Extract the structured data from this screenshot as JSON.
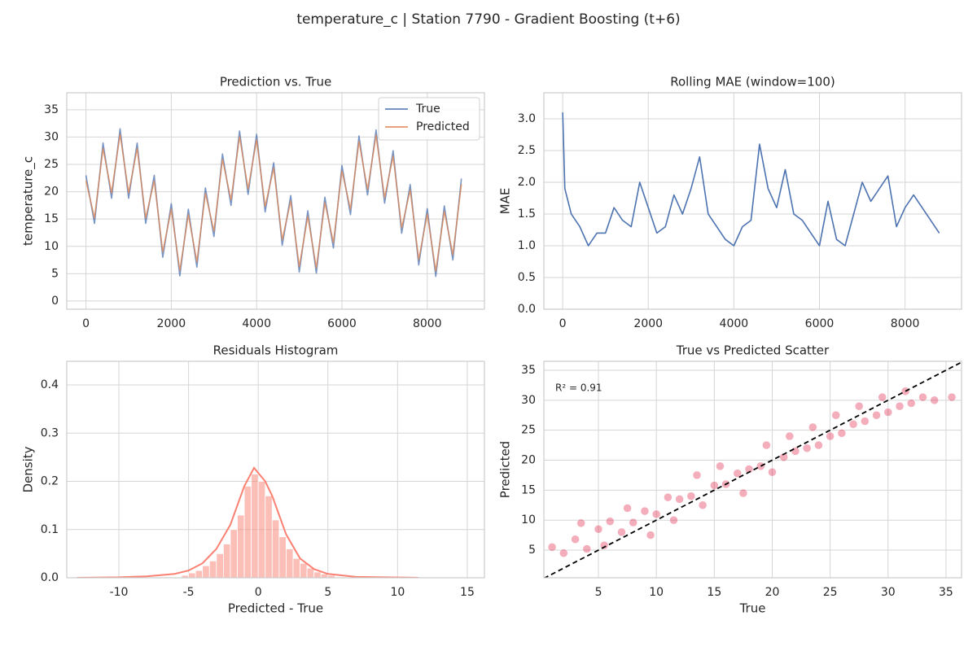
{
  "title": "temperature_c | Station 7790 - Gradient Boosting (t+6)",
  "chart_data": [
    {
      "type": "line",
      "title": "Prediction vs. True",
      "ylabel": "temperature_c",
      "xlim": [
        -450,
        9340
      ],
      "ylim": [
        -1.5,
        38.1
      ],
      "xticks": [
        0,
        2000,
        4000,
        6000,
        8000
      ],
      "yticks": [
        0,
        5,
        10,
        15,
        20,
        25,
        30,
        35
      ],
      "grid": true,
      "legend": "upper right",
      "x": [
        0,
        200,
        400,
        600,
        800,
        1000,
        1200,
        1400,
        1600,
        1800,
        2000,
        2200,
        2400,
        2600,
        2800,
        3000,
        3200,
        3400,
        3600,
        3800,
        4000,
        4200,
        4400,
        4600,
        4800,
        5000,
        5200,
        5400,
        5600,
        5800,
        6000,
        6200,
        6400,
        6600,
        6800,
        7000,
        7200,
        7400,
        7600,
        7800,
        8000,
        8200,
        8400,
        8600,
        8800
      ],
      "series": [
        {
          "name": "True",
          "color": "#4c72b0",
          "values": [
            23.0,
            14.2,
            28.9,
            18.8,
            31.5,
            18.8,
            28.9,
            14.2,
            23.0,
            8.0,
            17.8,
            4.6,
            16.8,
            6.2,
            20.7,
            11.8,
            26.9,
            17.5,
            31.1,
            19.5,
            30.5,
            16.3,
            25.3,
            10.2,
            19.3,
            5.3,
            16.5,
            5.1,
            19.0,
            9.7,
            24.8,
            15.8,
            30.2,
            19.4,
            31.3,
            17.9,
            27.5,
            12.4,
            21.3,
            6.6,
            16.9,
            4.5,
            17.4,
            7.5,
            22.4
          ]
        },
        {
          "name": "Predicted",
          "color": "#dd8452",
          "values": [
            22.0,
            15.2,
            27.9,
            19.8,
            30.5,
            19.8,
            27.9,
            15.2,
            22.0,
            9.0,
            16.8,
            5.6,
            15.8,
            7.2,
            19.7,
            12.8,
            25.9,
            18.5,
            30.1,
            20.5,
            29.5,
            17.3,
            24.3,
            11.2,
            18.3,
            6.3,
            15.5,
            6.1,
            18.0,
            10.7,
            23.8,
            16.8,
            29.2,
            20.4,
            30.3,
            18.9,
            26.5,
            13.4,
            20.3,
            7.6,
            15.9,
            5.5,
            16.4,
            8.5,
            21.4
          ]
        }
      ]
    },
    {
      "type": "line",
      "title": "Rolling MAE (window=100)",
      "ylabel": "MAE",
      "xlim": [
        -440,
        9320
      ],
      "ylim": [
        0,
        3.41
      ],
      "xticks": [
        0,
        2000,
        4000,
        6000,
        8000
      ],
      "yticks": [
        {
          "value": 0,
          "label": "0.0"
        },
        0.5,
        {
          "value": 1,
          "label": "1.0"
        },
        1.5,
        {
          "value": 2,
          "label": "2.0"
        },
        2.5,
        {
          "value": 3,
          "label": "3.0"
        }
      ],
      "grid": true,
      "x": [
        0,
        50,
        200,
        400,
        600,
        800,
        1000,
        1200,
        1400,
        1600,
        1800,
        2000,
        2200,
        2400,
        2600,
        2800,
        3000,
        3200,
        3400,
        3600,
        3800,
        4000,
        4200,
        4400,
        4600,
        4800,
        5000,
        5200,
        5400,
        5600,
        5800,
        6000,
        6200,
        6400,
        6600,
        6800,
        7000,
        7200,
        7400,
        7600,
        7800,
        8000,
        8200,
        8400,
        8600,
        8800
      ],
      "series": [
        {
          "color": "#4c72b0",
          "values": [
            3.1,
            1.9,
            1.5,
            1.3,
            1.0,
            1.2,
            1.2,
            1.6,
            1.4,
            1.3,
            2.0,
            1.6,
            1.2,
            1.3,
            1.8,
            1.5,
            1.9,
            2.4,
            1.5,
            1.3,
            1.1,
            1.0,
            1.3,
            1.4,
            2.6,
            1.9,
            1.6,
            2.2,
            1.5,
            1.4,
            1.2,
            1.0,
            1.7,
            1.1,
            1.0,
            1.5,
            2.0,
            1.7,
            1.9,
            2.1,
            1.3,
            1.6,
            1.8,
            1.6,
            1.4,
            1.2
          ]
        }
      ]
    },
    {
      "type": "histogram",
      "title": "Residuals Histogram",
      "xlabel": "Predicted - True",
      "ylabel": "Density",
      "xlim": [
        -13.74,
        16.23
      ],
      "ylim": [
        0,
        0.449
      ],
      "xticks": [
        -10,
        -5,
        0,
        5,
        10,
        15
      ],
      "yticks": [
        {
          "value": 0,
          "label": "0.0"
        },
        0.1,
        0.2,
        0.3,
        0.4
      ],
      "grid": true,
      "color": "#fa8072",
      "bins": [
        -5.5,
        -5,
        -4.5,
        -4,
        -3.5,
        -3,
        -2.5,
        -2,
        -1.5,
        -1,
        -0.5,
        0,
        0.5,
        1,
        1.5,
        2,
        2.5,
        3,
        3.5,
        4,
        4.5,
        5,
        5.5
      ],
      "values": [
        0.005,
        0.01,
        0.015,
        0.025,
        0.035,
        0.05,
        0.07,
        0.1,
        0.13,
        0.19,
        0.215,
        0.2,
        0.17,
        0.12,
        0.085,
        0.06,
        0.04,
        0.03,
        0.02,
        0.012,
        0.008,
        0.005
      ],
      "kde": {
        "x": [
          -13,
          -10,
          -8,
          -6,
          -5,
          -4,
          -3,
          -2,
          -1,
          -0.3,
          0.5,
          1,
          2,
          3,
          4,
          5,
          7,
          9,
          11.5
        ],
        "y": [
          0,
          0.001,
          0.003,
          0.008,
          0.015,
          0.03,
          0.06,
          0.11,
          0.19,
          0.228,
          0.2,
          0.17,
          0.09,
          0.04,
          0.018,
          0.008,
          0.002,
          0.001,
          0
        ]
      }
    },
    {
      "type": "scatter",
      "title": "True vs Predicted Scatter",
      "xlabel": "True",
      "ylabel": "Predicted",
      "xlim": [
        0.29,
        36.34
      ],
      "ylim": [
        0.39,
        36.49
      ],
      "xticks": [
        5,
        10,
        15,
        20,
        25,
        30,
        35
      ],
      "yticks": [
        5,
        10,
        15,
        20,
        25,
        30,
        35
      ],
      "grid": true,
      "color": "#dc143c",
      "identity_line": true,
      "annotation": "R² = 0.91",
      "x": [
        1,
        2,
        3,
        3.5,
        4,
        5,
        5.5,
        6,
        7,
        7.5,
        8,
        9,
        9.5,
        10,
        11,
        11.5,
        12,
        13,
        13.5,
        14,
        15,
        15.5,
        16,
        17,
        17.5,
        18,
        19,
        19.5,
        20,
        21,
        21.5,
        22,
        23,
        23.5,
        24,
        25,
        25.5,
        26,
        27,
        27.5,
        28,
        29,
        29.5,
        30,
        31,
        31.5,
        32,
        33,
        34,
        35.5
      ],
      "y": [
        5.5,
        4.5,
        6.8,
        9.5,
        5.2,
        8.5,
        5.8,
        9.8,
        8.0,
        12.0,
        9.6,
        11.5,
        7.5,
        11.0,
        13.8,
        10.0,
        13.5,
        14.0,
        17.5,
        12.5,
        15.8,
        19.0,
        16.0,
        17.8,
        14.5,
        18.5,
        19.0,
        22.5,
        18.0,
        20.5,
        24.0,
        21.5,
        22.0,
        25.5,
        22.5,
        24.0,
        27.5,
        24.5,
        26.0,
        29.0,
        26.5,
        27.5,
        30.5,
        28.0,
        29.0,
        31.5,
        29.5,
        30.5,
        30.0,
        30.5
      ]
    }
  ]
}
